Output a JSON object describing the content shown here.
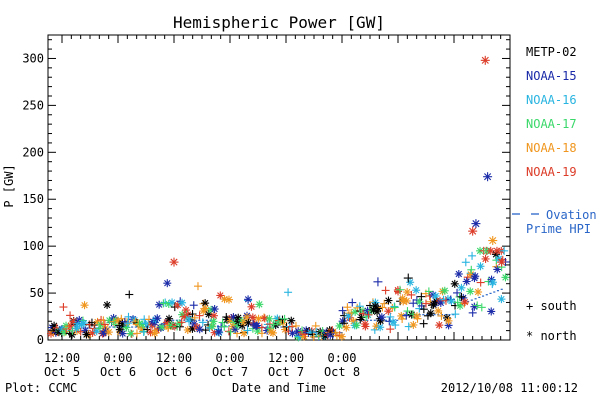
{
  "chart_data": {
    "type": "scatter",
    "title": "Hemispheric Power [GW]",
    "xlabel": "Date and Time",
    "ylabel": "P [GW]",
    "ylim": [
      0,
      325
    ],
    "xlim_hours": [
      -15,
      84
    ],
    "yticks": [
      0,
      50,
      100,
      150,
      200,
      250,
      300
    ],
    "xticks": [
      {
        "t": -12,
        "label": "12:00",
        "sub": "Oct 5"
      },
      {
        "t": 0,
        "label": "0:00",
        "sub": "Oct 6"
      },
      {
        "t": 12,
        "label": "12:00",
        "sub": "Oct 6"
      },
      {
        "t": 24,
        "label": "0:00",
        "sub": "Oct 7"
      },
      {
        "t": 36,
        "label": "12:00",
        "sub": "Oct 7"
      },
      {
        "t": 48,
        "label": "0:00",
        "sub": "Oct 8"
      }
    ],
    "legend_position": "right",
    "series": [
      {
        "name": "METP-02",
        "color": "#000000"
      },
      {
        "name": "NOAA-15",
        "color": "#1a2aa8"
      },
      {
        "name": "NOAA-16",
        "color": "#28b4e0"
      },
      {
        "name": "NOAA-17",
        "color": "#3ad86a"
      },
      {
        "name": "NOAA-18",
        "color": "#f0961e"
      },
      {
        "name": "NOAA-19",
        "color": "#dc3c28"
      }
    ],
    "ovation": {
      "name": "Ovation Prime HPI",
      "label_line1": "Ovation",
      "label_line2": "Prime HPI",
      "color": "#2a66c8"
    },
    "symbol_legend": [
      {
        "symbol": "+",
        "label": "south"
      },
      {
        "symbol": "*",
        "label": "north"
      }
    ],
    "highlights": [
      {
        "series": "NOAA-19",
        "t": 78.7,
        "y": 298,
        "sym": "*"
      },
      {
        "series": "NOAA-15",
        "t": 79.2,
        "y": 174,
        "sym": "*"
      },
      {
        "series": "NOAA-15",
        "t": 76.7,
        "y": 124,
        "sym": "*"
      },
      {
        "series": "NOAA-19",
        "t": 76.0,
        "y": 116,
        "sym": "*"
      },
      {
        "series": "NOAA-18",
        "t": 80.3,
        "y": 106,
        "sym": "*"
      },
      {
        "series": "NOAA-19",
        "t": 82.2,
        "y": 83,
        "sym": "*"
      },
      {
        "series": "NOAA-19",
        "t": 12.0,
        "y": 83,
        "sym": "*"
      },
      {
        "series": "METP-02",
        "t": 62.2,
        "y": 66,
        "sym": "+"
      },
      {
        "series": "NOAA-15",
        "t": 55.7,
        "y": 62,
        "sym": "+"
      }
    ]
  },
  "footer": {
    "plot_credit": "Plot: CCMC",
    "timestamp": "2012/10/08 11:00:12"
  }
}
